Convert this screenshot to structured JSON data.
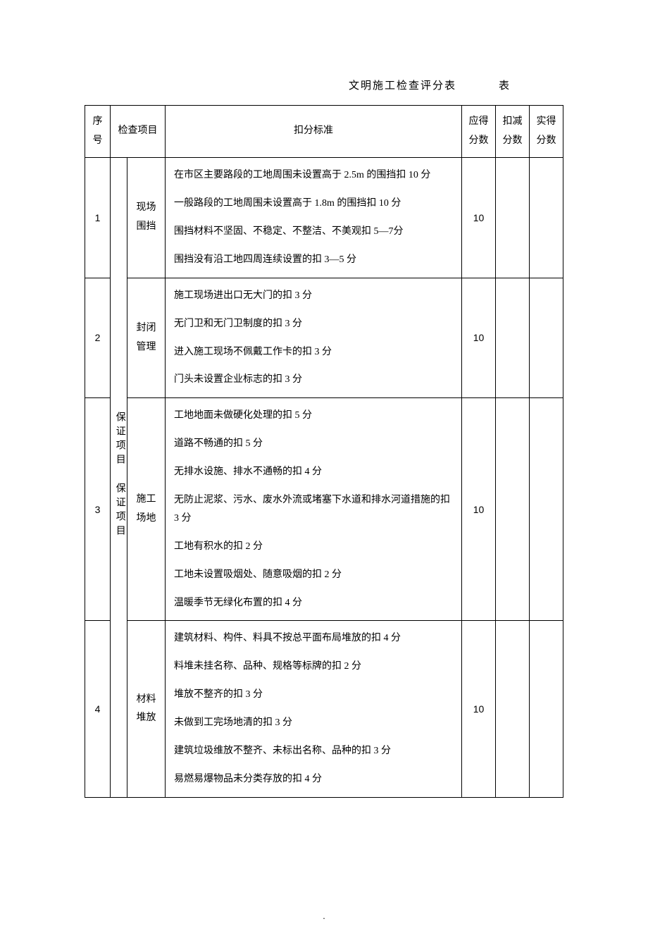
{
  "title": "文明施工检查评分表",
  "title_suffix": "表",
  "columns": {
    "num": "序号",
    "item": "检查项目",
    "criteria": "扣分标准",
    "due_score": "应得分数",
    "deduct_score": "扣减分数",
    "actual_score": "实得分数"
  },
  "category": "保证项目  保证项目",
  "rows": [
    {
      "num": "1",
      "item": "现场围挡",
      "criteria": [
        "在市区主要路段的工地周围未设置高于 2.5m 的围挡扣 10 分",
        "一般路段的工地周围未设置高于 1.8m 的围挡扣 10 分",
        "围挡材料不坚固、不稳定、不整洁、不美观扣 5—7分",
        "围挡没有沿工地四周连续设置的扣 3—5 分"
      ],
      "due_score": "10",
      "deduct_score": "",
      "actual_score": ""
    },
    {
      "num": "2",
      "item": "封闭管理",
      "criteria": [
        "施工现场进出口无大门的扣 3 分",
        "无门卫和无门卫制度的扣 3 分",
        "进入施工现场不佩戴工作卡的扣 3 分",
        "门头未设置企业标志的扣 3 分"
      ],
      "due_score": "10",
      "deduct_score": "",
      "actual_score": ""
    },
    {
      "num": "3",
      "item": "施工场地",
      "criteria": [
        "工地地面未做硬化处理的扣 5 分",
        "道路不畅通的扣 5 分",
        "无排水设施、排水不通畅的扣 4 分",
        "无防止泥浆、污水、废水外流或堵塞下水道和排水河道措施的扣 3 分",
        "工地有积水的扣 2 分",
        "工地未设置吸烟处、随意吸烟的扣 2 分",
        "温暖季节无绿化布置的扣 4 分"
      ],
      "due_score": "10",
      "deduct_score": "",
      "actual_score": ""
    },
    {
      "num": "4",
      "item": "材料堆放",
      "criteria": [
        "建筑材料、构件、料具不按总平面布局堆放的扣 4 分",
        "料堆未挂名称、品种、规格等标牌的扣 2 分",
        "堆放不整齐的扣 3 分",
        "未做到工完场地清的扣 3 分",
        "建筑垃圾维放不整齐、未标出名称、品种的扣 3 分",
        "易燃易爆物品未分类存放的扣 4 分"
      ],
      "due_score": "10",
      "deduct_score": "",
      "actual_score": ""
    }
  ],
  "style": {
    "background_color": "#ffffff",
    "border_color": "#000000",
    "font_family": "SimSun",
    "title_fontsize": 15,
    "cell_fontsize": 14,
    "line_height": 1.9
  }
}
